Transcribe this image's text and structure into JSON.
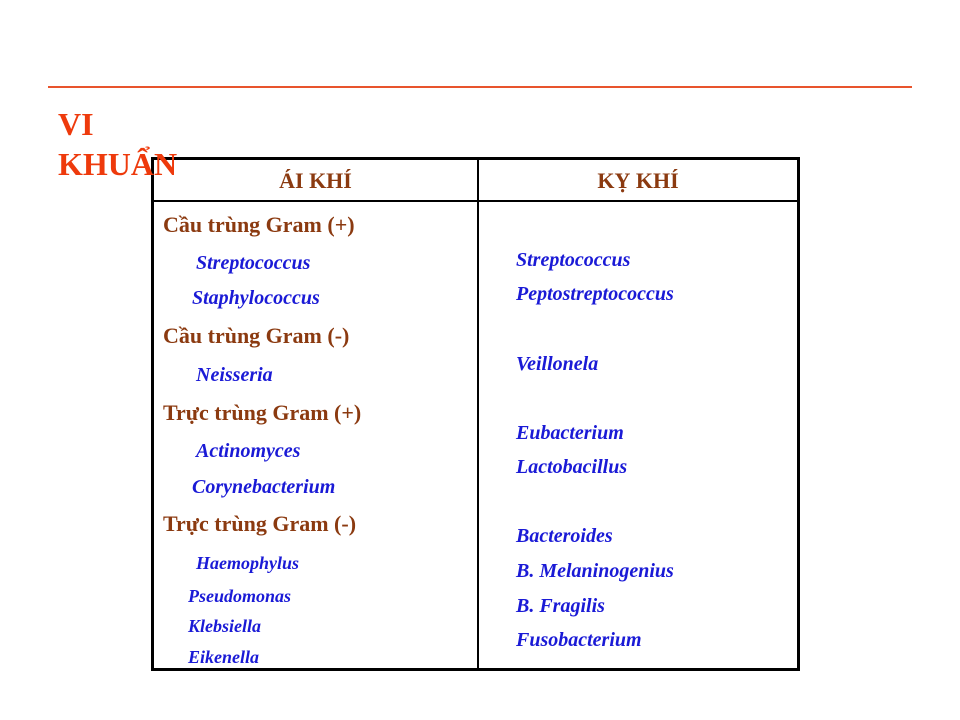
{
  "title": {
    "line1": "VI",
    "line2": "KHUẨN"
  },
  "colors": {
    "title": "#ee3a0c",
    "rule": "#e8542d",
    "group_label": "#8b3a10",
    "organism": "#1a1ad6",
    "border": "#000000"
  },
  "table": {
    "headers": {
      "aerobic": "ÁI KHÍ",
      "anaerobic": "KỴ KHÍ"
    },
    "aerobic": {
      "group1": {
        "label": "Cầu trùng Gram (+)",
        "items": [
          "Streptococcus",
          "Staphylococcus"
        ]
      },
      "group2": {
        "label": "Cầu trùng Gram (-)",
        "items": [
          "Neisseria"
        ]
      },
      "group3": {
        "label": "Trực trùng Gram (+)",
        "items": [
          "Actinomyces",
          "Corynebacterium"
        ]
      },
      "group4": {
        "label": "Trực trùng Gram (-)",
        "items": [
          "Haemophylus",
          "Pseudomonas",
          "Klebsiella",
          "Eikenella"
        ]
      }
    },
    "anaerobic": {
      "items": [
        "Streptococcus",
        "Peptostreptococcus",
        "Veillonela",
        "Eubacterium",
        "Lactobacillus",
        "Bacteroides",
        "B. Melaninogenius",
        "B. Fragilis",
        "Fusobacterium"
      ]
    }
  }
}
